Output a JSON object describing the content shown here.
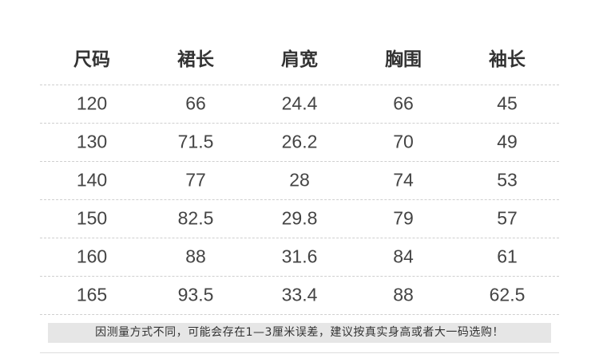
{
  "table": {
    "headers": [
      "尺码",
      "裙长",
      "肩宽",
      "胸围",
      "袖长"
    ],
    "rows": [
      [
        120,
        66,
        24.4,
        66,
        45
      ],
      [
        130,
        71.5,
        26.2,
        70,
        49
      ],
      [
        140,
        77,
        28,
        74,
        53
      ],
      [
        150,
        82.5,
        29.8,
        79,
        57
      ],
      [
        160,
        88,
        31.6,
        84,
        61
      ],
      [
        165,
        93.5,
        33.4,
        88,
        62.5
      ]
    ]
  },
  "note": "因测量方式不同，可能会存在1—3厘米误差，建议按真实身高或者大一码选购！"
}
